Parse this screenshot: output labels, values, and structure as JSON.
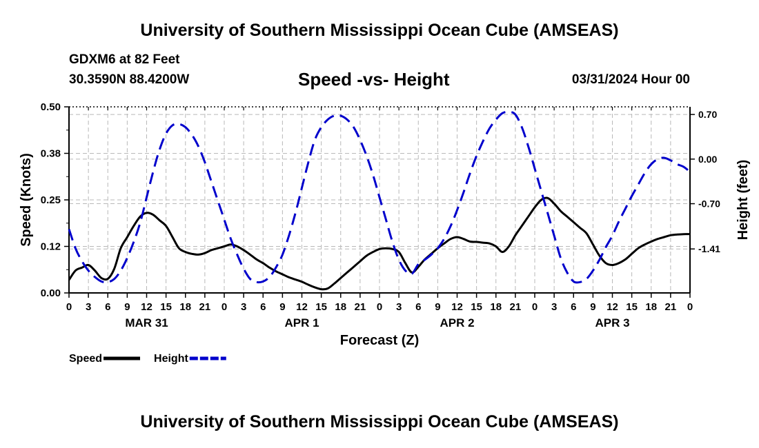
{
  "header": {
    "title": "University of Southern Mississippi Ocean Cube (AMSEAS)",
    "station": "GDXM6 at 82 Feet",
    "coords": "30.3590N  88.4200W",
    "subtitle": "Speed -vs- Height",
    "date": "03/31/2024 Hour 00"
  },
  "footer": {
    "title": "University of Southern Mississippi Ocean Cube (AMSEAS)"
  },
  "chart_data": {
    "type": "line",
    "title": "Speed -vs- Height",
    "xlabel": "Forecast (Z)",
    "ylabel": "Speed (Knots)",
    "y2label": "Height (feet)",
    "xlim": [
      0,
      96
    ],
    "ylim": [
      0,
      0.5
    ],
    "y2lim": [
      -2.1,
      0.82
    ],
    "grid": true,
    "x_ticks": [
      0,
      3,
      6,
      9,
      12,
      15,
      18,
      21,
      24,
      27,
      30,
      33,
      36,
      39,
      42,
      45,
      48,
      51,
      54,
      57,
      60,
      63,
      66,
      69,
      72,
      75,
      78,
      81,
      84,
      87,
      90,
      93,
      96
    ],
    "x_tick_labels": [
      "0",
      "3",
      "6",
      "9",
      "12",
      "15",
      "18",
      "21",
      "0",
      "3",
      "6",
      "9",
      "12",
      "15",
      "18",
      "21",
      "0",
      "3",
      "6",
      "9",
      "12",
      "15",
      "18",
      "21",
      "0",
      "3",
      "6",
      "9",
      "12",
      "15",
      "18",
      "21",
      "0"
    ],
    "day_labels": [
      {
        "x": 12,
        "label": "MAR 31"
      },
      {
        "x": 36,
        "label": "APR 1"
      },
      {
        "x": 60,
        "label": "APR 2"
      },
      {
        "x": 84,
        "label": "APR 3"
      }
    ],
    "y_ticks": [
      0.0,
      0.125,
      0.25,
      0.375,
      0.5
    ],
    "y_tick_labels": [
      "0.00",
      "0.12",
      "0.25",
      "0.38",
      "0.50"
    ],
    "y2_ticks": [
      0.7,
      0.0,
      -0.7,
      -1.41
    ],
    "y2_tick_labels": [
      "0.70",
      "0.00",
      "-0.70",
      "-1.41"
    ],
    "legend": {
      "position": "bottom-left",
      "items": [
        {
          "name": "Speed",
          "style": "solid",
          "color": "#000000"
        },
        {
          "name": "Height",
          "style": "dashed",
          "color": "#0000cc"
        }
      ]
    },
    "series": [
      {
        "name": "Speed",
        "axis": "left",
        "color": "#000000",
        "style": "solid",
        "x": [
          0,
          1,
          2,
          3,
          4,
          5,
          6,
          7,
          8,
          9,
          10,
          11,
          12,
          13,
          14,
          15,
          16,
          17,
          18,
          19,
          20,
          21,
          22,
          23,
          24,
          25,
          26,
          27,
          28,
          29,
          30,
          31,
          32,
          33,
          34,
          35,
          36,
          37,
          38,
          39,
          40,
          41,
          42,
          43,
          44,
          45,
          46,
          47,
          48,
          49,
          50,
          51,
          52,
          53,
          54,
          55,
          56,
          57,
          58,
          59,
          60,
          61,
          62,
          63,
          64,
          65,
          66,
          67,
          68,
          69,
          70,
          71,
          72,
          73,
          74,
          75,
          76,
          77,
          78,
          79,
          80,
          81,
          82,
          83,
          84,
          85,
          86,
          87,
          88,
          89,
          90,
          91,
          92,
          93,
          94,
          95,
          96
        ],
        "values": [
          0.035,
          0.06,
          0.068,
          0.075,
          0.06,
          0.04,
          0.038,
          0.065,
          0.12,
          0.15,
          0.18,
          0.205,
          0.215,
          0.21,
          0.195,
          0.18,
          0.15,
          0.12,
          0.11,
          0.105,
          0.103,
          0.107,
          0.115,
          0.12,
          0.125,
          0.13,
          0.125,
          0.115,
          0.103,
          0.09,
          0.08,
          0.068,
          0.058,
          0.05,
          0.042,
          0.036,
          0.03,
          0.022,
          0.015,
          0.01,
          0.012,
          0.025,
          0.04,
          0.055,
          0.07,
          0.085,
          0.1,
          0.11,
          0.118,
          0.12,
          0.118,
          0.11,
          0.08,
          0.055,
          0.07,
          0.09,
          0.105,
          0.12,
          0.133,
          0.145,
          0.15,
          0.145,
          0.138,
          0.137,
          0.135,
          0.133,
          0.125,
          0.11,
          0.125,
          0.155,
          0.18,
          0.205,
          0.23,
          0.25,
          0.255,
          0.24,
          0.22,
          0.205,
          0.19,
          0.175,
          0.16,
          0.13,
          0.1,
          0.08,
          0.075,
          0.08,
          0.09,
          0.105,
          0.12,
          0.13,
          0.138,
          0.145,
          0.15,
          0.155,
          0.157,
          0.158,
          0.158
        ]
      },
      {
        "name": "Height",
        "axis": "right",
        "color": "#0000cc",
        "style": "dashed",
        "x": [
          0,
          1,
          2,
          3,
          4,
          5,
          6,
          7,
          8,
          9,
          10,
          11,
          12,
          13,
          14,
          15,
          16,
          17,
          18,
          19,
          20,
          21,
          22,
          23,
          24,
          25,
          26,
          27,
          28,
          29,
          30,
          31,
          32,
          33,
          34,
          35,
          36,
          37,
          38,
          39,
          40,
          41,
          42,
          43,
          44,
          45,
          46,
          47,
          48,
          49,
          50,
          51,
          52,
          53,
          54,
          55,
          56,
          57,
          58,
          59,
          60,
          61,
          62,
          63,
          64,
          65,
          66,
          67,
          68,
          69,
          70,
          71,
          72,
          73,
          74,
          75,
          76,
          77,
          78,
          79,
          80,
          81,
          82,
          83,
          84,
          85,
          86,
          87,
          88,
          89,
          90,
          91,
          92,
          93,
          94,
          95,
          96
        ],
        "values": [
          -1.1,
          -1.4,
          -1.6,
          -1.75,
          -1.85,
          -1.92,
          -1.93,
          -1.88,
          -1.75,
          -1.55,
          -1.3,
          -1.0,
          -0.6,
          -0.2,
          0.15,
          0.4,
          0.53,
          0.55,
          0.5,
          0.38,
          0.2,
          -0.05,
          -0.35,
          -0.65,
          -0.95,
          -1.25,
          -1.5,
          -1.72,
          -1.88,
          -1.93,
          -1.92,
          -1.85,
          -1.7,
          -1.5,
          -1.2,
          -0.85,
          -0.45,
          -0.05,
          0.3,
          0.5,
          0.62,
          0.68,
          0.68,
          0.62,
          0.5,
          0.3,
          0.05,
          -0.25,
          -0.6,
          -0.95,
          -1.3,
          -1.58,
          -1.75,
          -1.8,
          -1.65,
          -1.58,
          -1.5,
          -1.4,
          -1.25,
          -1.05,
          -0.8,
          -0.52,
          -0.22,
          0.05,
          0.28,
          0.48,
          0.62,
          0.72,
          0.74,
          0.7,
          0.5,
          0.2,
          -0.15,
          -0.5,
          -0.85,
          -1.2,
          -1.55,
          -1.78,
          -1.92,
          -1.93,
          -1.88,
          -1.75,
          -1.58,
          -1.38,
          -1.2,
          -0.98,
          -0.78,
          -0.58,
          -0.4,
          -0.22,
          -0.08,
          0.0,
          0.02,
          -0.02,
          -0.08,
          -0.12,
          -0.2
        ]
      }
    ]
  }
}
